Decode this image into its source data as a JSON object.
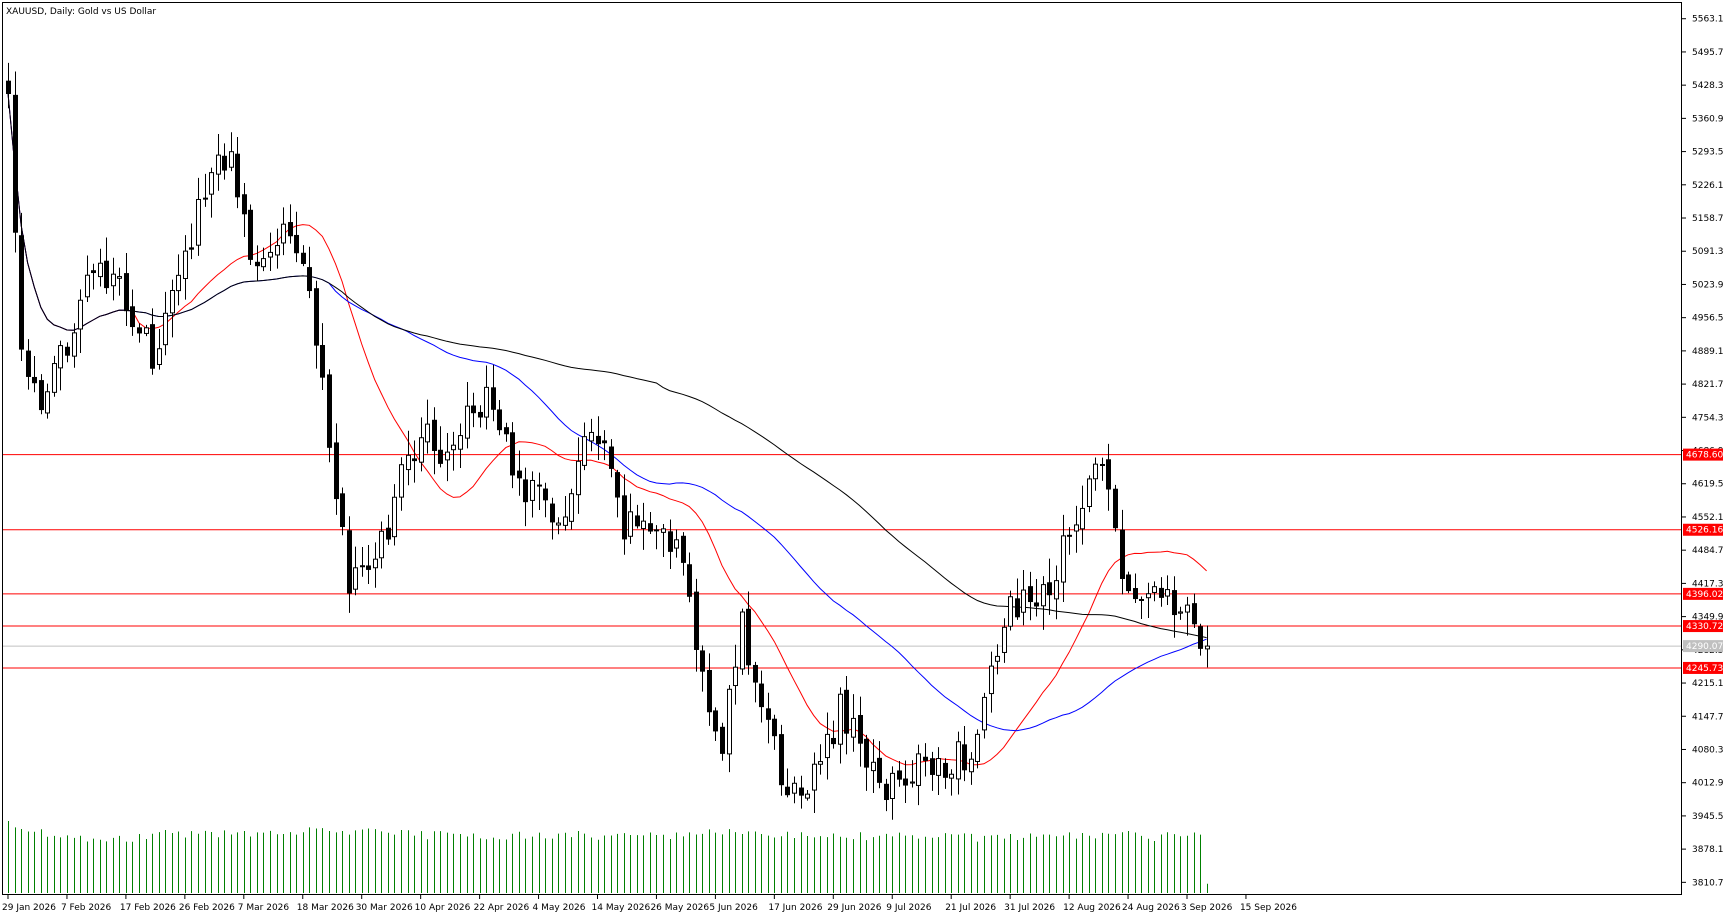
{
  "header": {
    "title": "XAUUSD, Daily:  Gold vs US Dollar"
  },
  "colors": {
    "background": "#ffffff",
    "frame": "#000000",
    "candle": "#000000",
    "ma_fast": "#ff0000",
    "ma_mid": "#0000ff",
    "ma_slow": "#000000",
    "levels": "#ff0000",
    "current_price_line": "#c0c0c0",
    "volume": "#008000"
  },
  "chart_data": {
    "type": "candlestick",
    "title": "XAUUSD, Daily:  Gold vs US Dollar",
    "ylim": [
      3785,
      5595
    ],
    "y_ticks": [
      "5563.10",
      "5495.70",
      "5428.30",
      "5360.90",
      "5293.50",
      "5226.10",
      "5158.70",
      "5091.30",
      "5023.90",
      "4956.50",
      "4889.10",
      "4821.70",
      "4754.30",
      "4686.90",
      "4619.50",
      "4552.10",
      "4484.70",
      "4417.30",
      "4349.90",
      "4282.50",
      "4215.10",
      "4147.70",
      "4080.30",
      "4012.90",
      "3945.50",
      "3878.10",
      "3810.70"
    ],
    "x_ticks": [
      "29 Jan 2026",
      "7 Feb 2026",
      "17 Feb 2026",
      "26 Feb 2026",
      "7 Mar 2026",
      "18 Mar 2026",
      "30 Mar 2026",
      "10 Apr 2026",
      "22 Apr 2026",
      "4 May 2026",
      "14 May 2026",
      "26 May 2026",
      "5 Jun 2026",
      "17 Jun 2026",
      "29 Jun 2026",
      "9 Jul 2026",
      "21 Jul 2026",
      "31 Jul 2026",
      "12 Aug 2026",
      "24 Aug 2026",
      "3 Sep 2026",
      "15 Sep 2026"
    ],
    "levels": [
      {
        "label": "4678.60",
        "value": 4678.6
      },
      {
        "label": "4526.16",
        "value": 4526.16
      },
      {
        "label": "4396.02",
        "value": 4396.02
      },
      {
        "label": "4330.72",
        "value": 4330.72
      },
      {
        "label": "4245.73",
        "value": 4245.73
      }
    ],
    "current_price": {
      "label": "4290.07",
      "value": 4290.07
    },
    "close_waypoints": [
      [
        0,
        5400
      ],
      [
        2,
        4900
      ],
      [
        5,
        4750
      ],
      [
        8,
        4870
      ],
      [
        12,
        5050
      ],
      [
        17,
        5010
      ],
      [
        22,
        4880
      ],
      [
        26,
        5020
      ],
      [
        30,
        5230
      ],
      [
        34,
        5300
      ],
      [
        37,
        5080
      ],
      [
        40,
        5120
      ],
      [
        43,
        5140
      ],
      [
        46,
        5020
      ],
      [
        49,
        4720
      ],
      [
        52,
        4400
      ],
      [
        55,
        4460
      ],
      [
        58,
        4520
      ],
      [
        61,
        4690
      ],
      [
        64,
        4720
      ],
      [
        67,
        4660
      ],
      [
        70,
        4780
      ],
      [
        73,
        4790
      ],
      [
        76,
        4700
      ],
      [
        79,
        4610
      ],
      [
        82,
        4570
      ],
      [
        85,
        4550
      ],
      [
        88,
        4700
      ],
      [
        91,
        4680
      ],
      [
        94,
        4520
      ],
      [
        97,
        4560
      ],
      [
        100,
        4510
      ],
      [
        103,
        4460
      ],
      [
        106,
        4230
      ],
      [
        109,
        4100
      ],
      [
        112,
        4330
      ],
      [
        115,
        4180
      ],
      [
        118,
        4020
      ],
      [
        121,
        3990
      ],
      [
        124,
        4050
      ],
      [
        127,
        4160
      ],
      [
        130,
        4100
      ],
      [
        133,
        4010
      ],
      [
        136,
        4000
      ],
      [
        139,
        4050
      ],
      [
        142,
        4050
      ],
      [
        145,
        4070
      ],
      [
        148,
        4080
      ],
      [
        150,
        4230
      ],
      [
        153,
        4380
      ],
      [
        156,
        4370
      ],
      [
        159,
        4400
      ],
      [
        162,
        4520
      ],
      [
        165,
        4640
      ],
      [
        167,
        4660
      ],
      [
        169,
        4500
      ],
      [
        171,
        4420
      ],
      [
        173,
        4350
      ],
      [
        175,
        4410
      ],
      [
        177,
        4400
      ],
      [
        179,
        4370
      ],
      [
        181,
        4310
      ],
      [
        183,
        4290
      ]
    ],
    "volume_waypoints": [
      [
        0,
        0.9
      ],
      [
        8,
        0.75
      ],
      [
        16,
        0.72
      ],
      [
        24,
        0.78
      ],
      [
        32,
        0.8
      ],
      [
        40,
        0.8
      ],
      [
        48,
        0.82
      ],
      [
        56,
        0.8
      ],
      [
        64,
        0.77
      ],
      [
        72,
        0.76
      ],
      [
        80,
        0.76
      ],
      [
        88,
        0.77
      ],
      [
        96,
        0.76
      ],
      [
        104,
        0.75
      ],
      [
        108,
        0.8
      ],
      [
        112,
        0.82
      ],
      [
        120,
        0.77
      ],
      [
        128,
        0.76
      ],
      [
        136,
        0.75
      ],
      [
        144,
        0.74
      ],
      [
        152,
        0.74
      ],
      [
        160,
        0.74
      ],
      [
        166,
        0.78
      ],
      [
        170,
        0.77
      ],
      [
        176,
        0.75
      ],
      [
        182,
        0.78
      ],
      [
        183,
        0.12
      ]
    ],
    "candle_count": 184,
    "moving_averages": [
      {
        "period": 20,
        "color": "#ff0000"
      },
      {
        "period": 50,
        "color": "#0000ff"
      },
      {
        "period": 100,
        "color": "#000000"
      }
    ],
    "grid": false
  }
}
